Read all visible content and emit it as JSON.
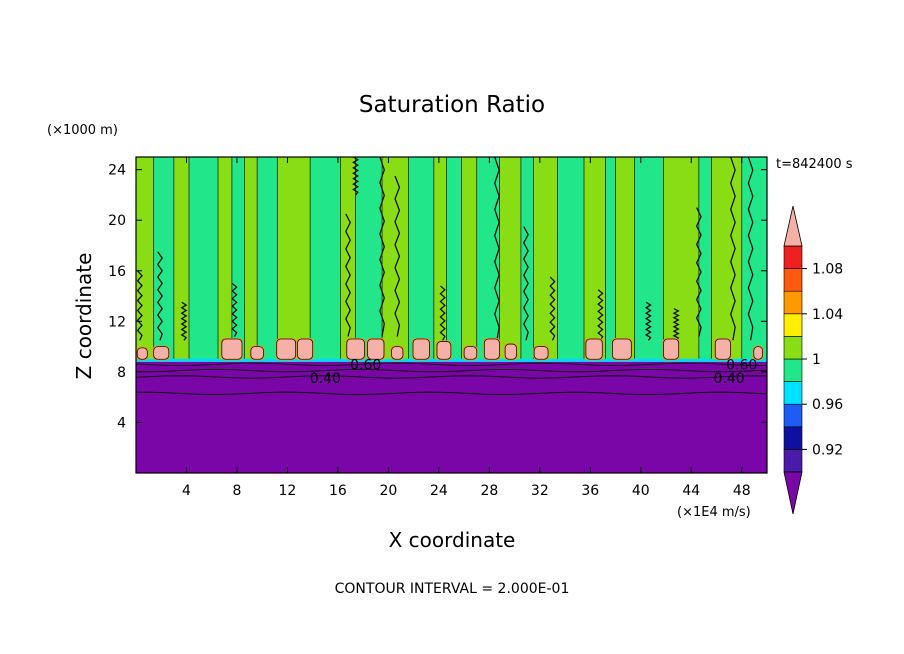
{
  "chart_data": {
    "type": "heatmap",
    "title": "Saturation Ratio",
    "xlabel": "X coordinate",
    "ylabel": "Z coordinate",
    "x_unit": "(×1E4 m/s)",
    "y_unit": "(×1000 m)",
    "time_label": "t=842400 s",
    "footer": "CONTOUR INTERVAL = 2.000E-01",
    "xlim": [
      0,
      50
    ],
    "ylim": [
      0,
      25
    ],
    "x_ticks": [
      {
        "value": 4,
        "label": "4"
      },
      {
        "value": 8,
        "label": "8"
      },
      {
        "value": 12,
        "label": "12"
      },
      {
        "value": 16,
        "label": "16"
      },
      {
        "value": 20,
        "label": "20"
      },
      {
        "value": 24,
        "label": "24"
      },
      {
        "value": 28,
        "label": "28"
      },
      {
        "value": 32,
        "label": "32"
      },
      {
        "value": 36,
        "label": "36"
      },
      {
        "value": 40,
        "label": "40"
      },
      {
        "value": 44,
        "label": "44"
      },
      {
        "value": 48,
        "label": "48"
      }
    ],
    "y_ticks": [
      {
        "value": 4,
        "label": "4"
      },
      {
        "value": 8,
        "label": "8"
      },
      {
        "value": 12,
        "label": "12"
      },
      {
        "value": 16,
        "label": "16"
      },
      {
        "value": 20,
        "label": "20"
      },
      {
        "value": 24,
        "label": "24"
      }
    ],
    "colorbar": {
      "labels": [
        {
          "value": 0.92,
          "label": "0.92"
        },
        {
          "value": 0.96,
          "label": "0.96"
        },
        {
          "value": 1.0,
          "label": "1"
        },
        {
          "value": 1.04,
          "label": "1.04"
        },
        {
          "value": 1.08,
          "label": "1.08"
        }
      ],
      "bins": [
        {
          "from": 0.9,
          "to": 0.92,
          "color": "#4a1aa8"
        },
        {
          "from": 0.92,
          "to": 0.94,
          "color": "#1010a0"
        },
        {
          "from": 0.94,
          "to": 0.96,
          "color": "#1e5cf5"
        },
        {
          "from": 0.96,
          "to": 0.98,
          "color": "#00e0ff"
        },
        {
          "from": 0.98,
          "to": 1.0,
          "color": "#22e68a"
        },
        {
          "from": 1.0,
          "to": 1.02,
          "color": "#88dd14"
        },
        {
          "from": 1.02,
          "to": 1.04,
          "color": "#ffee00"
        },
        {
          "from": 1.04,
          "to": 1.06,
          "color": "#ff9900"
        },
        {
          "from": 1.06,
          "to": 1.08,
          "color": "#ff5a10"
        },
        {
          "from": 1.08,
          "to": 1.1,
          "color": "#ee2020"
        }
      ],
      "under_color": "#7a06a8",
      "over_color": "#f5b0a8"
    },
    "colors": {
      "low_layer": "#7a06a8",
      "green_a": "#22e68a",
      "green_b": "#88dd14",
      "cap": "#f5b0a8",
      "cap_edge": "#ff9900"
    },
    "contour_labels": [
      {
        "text": "0.60",
        "x": 18.2,
        "z": 8.6
      },
      {
        "text": "0.40",
        "x": 15.0,
        "z": 7.5
      },
      {
        "text": "0.60",
        "x": 48.0,
        "z": 8.6
      },
      {
        "text": "0.40",
        "x": 47.0,
        "z": 7.5
      }
    ],
    "contour_levels_z": [
      8.6,
      8.1,
      7.6,
      6.3
    ],
    "layer_top_z": 8.8,
    "columns": [
      {
        "x0": 0.0,
        "x1": 1.4,
        "val": 1.01
      },
      {
        "x0": 1.4,
        "x1": 3.0,
        "val": 0.99
      },
      {
        "x0": 3.0,
        "x1": 4.2,
        "val": 1.01
      },
      {
        "x0": 4.2,
        "x1": 6.5,
        "val": 0.99
      },
      {
        "x0": 6.5,
        "x1": 7.6,
        "val": 1.01
      },
      {
        "x0": 7.6,
        "x1": 8.6,
        "val": 0.99
      },
      {
        "x0": 8.6,
        "x1": 9.6,
        "val": 1.01
      },
      {
        "x0": 9.6,
        "x1": 11.2,
        "val": 0.99
      },
      {
        "x0": 11.2,
        "x1": 13.8,
        "val": 1.01
      },
      {
        "x0": 13.8,
        "x1": 16.2,
        "val": 0.99
      },
      {
        "x0": 16.2,
        "x1": 17.4,
        "val": 1.01
      },
      {
        "x0": 17.4,
        "x1": 19.5,
        "val": 0.99
      },
      {
        "x0": 19.5,
        "x1": 21.6,
        "val": 1.01
      },
      {
        "x0": 21.6,
        "x1": 23.6,
        "val": 0.99
      },
      {
        "x0": 23.6,
        "x1": 24.6,
        "val": 1.01
      },
      {
        "x0": 24.6,
        "x1": 25.8,
        "val": 0.99
      },
      {
        "x0": 25.8,
        "x1": 27.0,
        "val": 1.01
      },
      {
        "x0": 27.0,
        "x1": 28.8,
        "val": 0.99
      },
      {
        "x0": 28.8,
        "x1": 30.5,
        "val": 1.01
      },
      {
        "x0": 30.5,
        "x1": 31.5,
        "val": 0.99
      },
      {
        "x0": 31.5,
        "x1": 33.4,
        "val": 1.01
      },
      {
        "x0": 33.4,
        "x1": 35.5,
        "val": 0.99
      },
      {
        "x0": 35.5,
        "x1": 37.2,
        "val": 1.01
      },
      {
        "x0": 37.2,
        "x1": 38.0,
        "val": 0.99
      },
      {
        "x0": 38.0,
        "x1": 39.5,
        "val": 1.01
      },
      {
        "x0": 39.5,
        "x1": 41.8,
        "val": 0.99
      },
      {
        "x0": 41.8,
        "x1": 44.6,
        "val": 1.01
      },
      {
        "x0": 44.6,
        "x1": 45.6,
        "val": 0.99
      },
      {
        "x0": 45.6,
        "x1": 48.0,
        "val": 1.01
      },
      {
        "x0": 48.0,
        "x1": 50.0,
        "val": 0.99
      }
    ],
    "caps": [
      {
        "x": 0.5,
        "w": 0.8,
        "z0": 9.0,
        "z1": 9.9
      },
      {
        "x": 2.0,
        "w": 1.2,
        "z0": 9.0,
        "z1": 10.0
      },
      {
        "x": 7.6,
        "w": 1.6,
        "z0": 9.0,
        "z1": 10.6
      },
      {
        "x": 9.6,
        "w": 1.0,
        "z0": 9.0,
        "z1": 10.0
      },
      {
        "x": 11.9,
        "w": 1.5,
        "z0": 9.0,
        "z1": 10.6
      },
      {
        "x": 13.4,
        "w": 1.2,
        "z0": 9.0,
        "z1": 10.6
      },
      {
        "x": 17.4,
        "w": 1.4,
        "z0": 9.0,
        "z1": 10.6
      },
      {
        "x": 19.0,
        "w": 1.3,
        "z0": 9.0,
        "z1": 10.6
      },
      {
        "x": 20.7,
        "w": 0.9,
        "z0": 9.0,
        "z1": 10.0
      },
      {
        "x": 22.6,
        "w": 1.3,
        "z0": 9.0,
        "z1": 10.6
      },
      {
        "x": 24.4,
        "w": 1.1,
        "z0": 9.0,
        "z1": 10.4
      },
      {
        "x": 26.5,
        "w": 1.0,
        "z0": 9.0,
        "z1": 10.0
      },
      {
        "x": 28.2,
        "w": 1.2,
        "z0": 9.0,
        "z1": 10.6
      },
      {
        "x": 29.7,
        "w": 0.9,
        "z0": 9.0,
        "z1": 10.2
      },
      {
        "x": 32.1,
        "w": 1.1,
        "z0": 9.0,
        "z1": 10.0
      },
      {
        "x": 36.3,
        "w": 1.3,
        "z0": 9.0,
        "z1": 10.6
      },
      {
        "x": 38.5,
        "w": 1.5,
        "z0": 9.0,
        "z1": 10.6
      },
      {
        "x": 42.4,
        "w": 1.2,
        "z0": 9.0,
        "z1": 10.6
      },
      {
        "x": 46.5,
        "w": 1.2,
        "z0": 9.0,
        "z1": 10.6
      },
      {
        "x": 49.3,
        "w": 0.7,
        "z0": 9.0,
        "z1": 10.0
      }
    ],
    "dark_streaks": [
      {
        "x": 0.3,
        "z0": 10.5,
        "z1": 16.0
      },
      {
        "x": 1.9,
        "z0": 10.5,
        "z1": 17.5
      },
      {
        "x": 3.8,
        "z0": 10.5,
        "z1": 13.5
      },
      {
        "x": 7.8,
        "z0": 10.8,
        "z1": 15.0
      },
      {
        "x": 16.8,
        "z0": 10.8,
        "z1": 20.5
      },
      {
        "x": 17.4,
        "z0": 22.0,
        "z1": 25.0
      },
      {
        "x": 19.5,
        "z0": 10.8,
        "z1": 25.0
      },
      {
        "x": 20.7,
        "z0": 10.8,
        "z1": 23.5
      },
      {
        "x": 24.3,
        "z0": 10.5,
        "z1": 14.8
      },
      {
        "x": 28.6,
        "z0": 10.5,
        "z1": 25.0
      },
      {
        "x": 30.9,
        "z0": 10.5,
        "z1": 19.5
      },
      {
        "x": 33.0,
        "z0": 10.5,
        "z1": 15.5
      },
      {
        "x": 36.8,
        "z0": 10.5,
        "z1": 14.5
      },
      {
        "x": 40.6,
        "z0": 10.5,
        "z1": 13.5
      },
      {
        "x": 42.8,
        "z0": 10.5,
        "z1": 13.0
      },
      {
        "x": 44.6,
        "z0": 10.8,
        "z1": 21.0
      },
      {
        "x": 47.3,
        "z0": 10.5,
        "z1": 25.0
      },
      {
        "x": 48.7,
        "z0": 10.5,
        "z1": 25.0
      }
    ]
  }
}
